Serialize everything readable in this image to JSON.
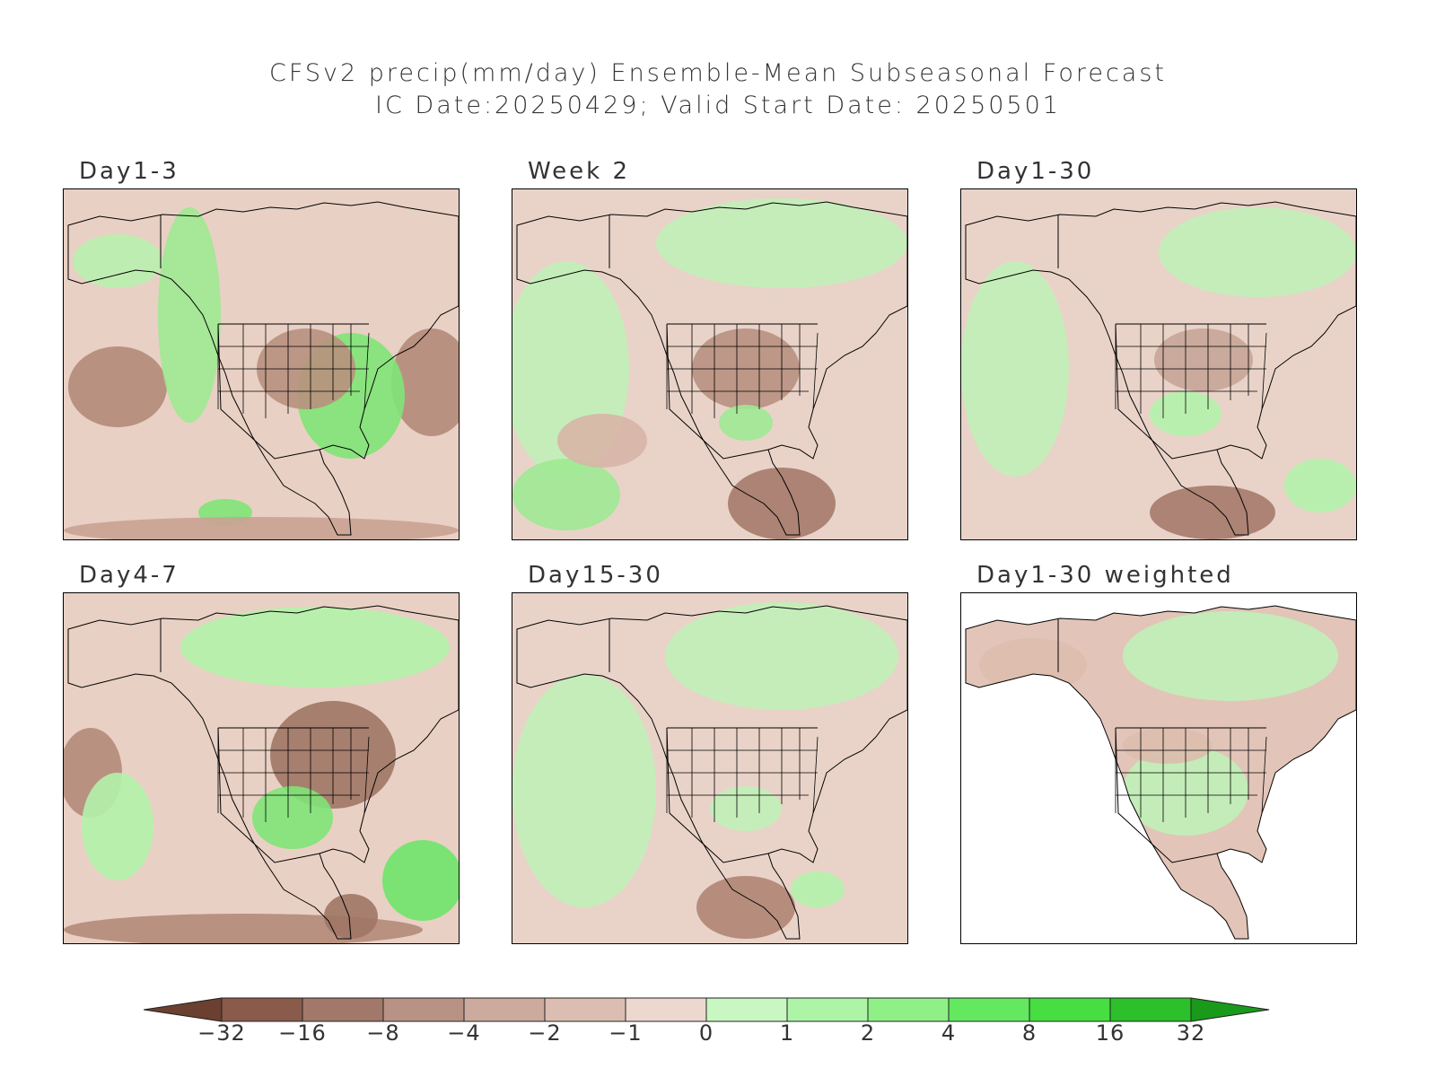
{
  "title_line1": "CFSv2 precip(mm/day) Ensemble-Mean Subseasonal Forecast",
  "title_line2": "IC Date:20250429; Valid Start Date: 20250501",
  "panels": [
    {
      "label": "Day1-3",
      "pattern": "day1-3"
    },
    {
      "label": "Week 2",
      "pattern": "week2"
    },
    {
      "label": "Day1-30",
      "pattern": "day1-30"
    },
    {
      "label": "Day4-7",
      "pattern": "day4-7"
    },
    {
      "label": "Day15-30",
      "pattern": "day15-30"
    },
    {
      "label": "Day1-30 weighted",
      "pattern": "weighted"
    }
  ],
  "colorbar": {
    "ticks": [
      "-32",
      "-16",
      "-8",
      "-4",
      "-2",
      "-1",
      "0",
      "1",
      "2",
      "4",
      "8",
      "16",
      "32"
    ],
    "colors": [
      "#6b4030",
      "#8a5a4a",
      "#a2786a",
      "#b89285",
      "#ccaa9d",
      "#dcbdb1",
      "#ecd8cf",
      "#c8f7c2",
      "#aef4a6",
      "#8ff087",
      "#64e860",
      "#46de40",
      "#2cc02a",
      "#1a9a1a"
    ]
  },
  "colors": {
    "ocean_neutral": "#ead3c8",
    "dry": "#c9a294",
    "very_dry": "#a9806f",
    "wet": "#b4f2ab",
    "very_wet": "#6fe46a",
    "coast": "#000000"
  }
}
